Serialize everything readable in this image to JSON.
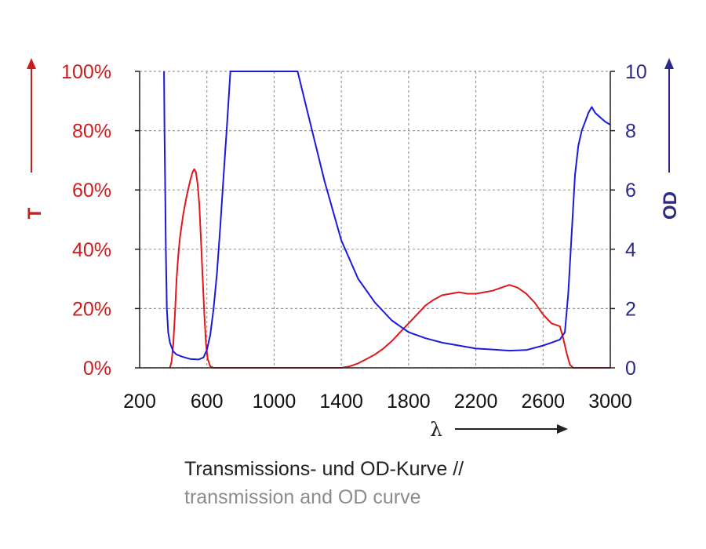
{
  "chart_data": {
    "type": "line",
    "title": "",
    "xlabel": "λ",
    "ylabel_left": "T",
    "ylabel_right": "OD",
    "xlim": [
      200,
      3000
    ],
    "ylim_left": [
      0,
      100
    ],
    "ylim_right": [
      0,
      10
    ],
    "x_ticks": [
      "200",
      "600",
      "1000",
      "1400",
      "1800",
      "2200",
      "2600",
      "3000"
    ],
    "y_left_ticks": [
      "0%",
      "20%",
      "40%",
      "60%",
      "80%",
      "100%"
    ],
    "y_right_ticks": [
      "0",
      "2",
      "4",
      "6",
      "8",
      "10"
    ],
    "grid": true,
    "colors": {
      "T": "#e0181b",
      "OD": "#1a1adb",
      "left_axis": "#cc1d1d",
      "right_axis": "#2b2a86",
      "grid": "#9a9a9a"
    },
    "series": [
      {
        "axis": "left",
        "points": [
          [
            380,
            0
          ],
          [
            390,
            2
          ],
          [
            400,
            8
          ],
          [
            410,
            18
          ],
          [
            420,
            30
          ],
          [
            430,
            38
          ],
          [
            440,
            44
          ],
          [
            460,
            52
          ],
          [
            480,
            58
          ],
          [
            500,
            63
          ],
          [
            515,
            66
          ],
          [
            525,
            67
          ],
          [
            535,
            66
          ],
          [
            545,
            62
          ],
          [
            555,
            55
          ],
          [
            565,
            43
          ],
          [
            575,
            30
          ],
          [
            585,
            18
          ],
          [
            595,
            8
          ],
          [
            605,
            3
          ],
          [
            620,
            0.5
          ],
          [
            640,
            0
          ],
          [
            1400,
            0
          ],
          [
            1450,
            0.5
          ],
          [
            1500,
            1.5
          ],
          [
            1550,
            3
          ],
          [
            1600,
            4.5
          ],
          [
            1650,
            6.5
          ],
          [
            1700,
            9
          ],
          [
            1750,
            12
          ],
          [
            1800,
            15
          ],
          [
            1850,
            18
          ],
          [
            1900,
            21
          ],
          [
            1950,
            23
          ],
          [
            2000,
            24.5
          ],
          [
            2050,
            25
          ],
          [
            2100,
            25.5
          ],
          [
            2150,
            25
          ],
          [
            2200,
            25
          ],
          [
            2250,
            25.5
          ],
          [
            2300,
            26
          ],
          [
            2350,
            27
          ],
          [
            2400,
            28
          ],
          [
            2450,
            27
          ],
          [
            2500,
            25
          ],
          [
            2550,
            22
          ],
          [
            2600,
            18
          ],
          [
            2650,
            15
          ],
          [
            2700,
            14
          ],
          [
            2720,
            10
          ],
          [
            2740,
            5
          ],
          [
            2760,
            1
          ],
          [
            2780,
            0
          ],
          [
            3000,
            0
          ]
        ]
      },
      {
        "axis": "right",
        "points": [
          [
            345,
            10
          ],
          [
            348,
            8
          ],
          [
            352,
            6
          ],
          [
            356,
            4
          ],
          [
            362,
            2
          ],
          [
            370,
            1.2
          ],
          [
            380,
            0.85
          ],
          [
            400,
            0.55
          ],
          [
            420,
            0.45
          ],
          [
            450,
            0.38
          ],
          [
            500,
            0.3
          ],
          [
            550,
            0.28
          ],
          [
            580,
            0.35
          ],
          [
            600,
            0.6
          ],
          [
            620,
            1.1
          ],
          [
            640,
            2
          ],
          [
            660,
            3.2
          ],
          [
            680,
            4.8
          ],
          [
            700,
            6.5
          ],
          [
            720,
            8.2
          ],
          [
            740,
            10
          ],
          [
            1140,
            10
          ],
          [
            1200,
            8.6
          ],
          [
            1300,
            6.3
          ],
          [
            1400,
            4.3
          ],
          [
            1500,
            3
          ],
          [
            1600,
            2.2
          ],
          [
            1700,
            1.6
          ],
          [
            1800,
            1.2
          ],
          [
            1900,
            1
          ],
          [
            2000,
            0.85
          ],
          [
            2100,
            0.75
          ],
          [
            2200,
            0.65
          ],
          [
            2300,
            0.62
          ],
          [
            2400,
            0.58
          ],
          [
            2500,
            0.6
          ],
          [
            2600,
            0.75
          ],
          [
            2650,
            0.85
          ],
          [
            2700,
            0.95
          ],
          [
            2730,
            1.2
          ],
          [
            2750,
            2.5
          ],
          [
            2770,
            4.5
          ],
          [
            2790,
            6.5
          ],
          [
            2810,
            7.5
          ],
          [
            2830,
            8
          ],
          [
            2850,
            8.3
          ],
          [
            2870,
            8.6
          ],
          [
            2890,
            8.8
          ],
          [
            2910,
            8.6
          ],
          [
            2930,
            8.5
          ],
          [
            2950,
            8.4
          ],
          [
            2970,
            8.3
          ],
          [
            3000,
            8.2
          ]
        ]
      }
    ]
  },
  "caption": {
    "line1": "Transmissions- und OD-Kurve //",
    "line2": "transmission and OD curve"
  }
}
